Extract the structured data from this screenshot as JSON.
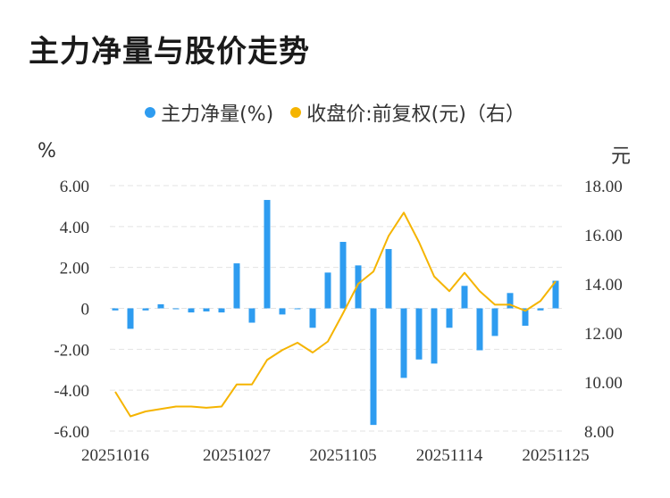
{
  "title": "主力净量与股价走势",
  "legend": {
    "bar_label": "主力净量(%)",
    "line_label": "收盘价:前复权(元)（右）"
  },
  "units": {
    "left": "%",
    "right": "元"
  },
  "colors": {
    "bar": "#2e9cf0",
    "line": "#f5b400",
    "grid": "#e3e3e3"
  },
  "chart_data": {
    "type": "bar+line",
    "x_tick_labels": [
      "20251016",
      "20251027",
      "20251105",
      "20251114",
      "20251125"
    ],
    "left_axis": {
      "ticks": [
        "6.00",
        "4.00",
        "2.00",
        "0",
        "-2.00",
        "-4.00",
        "-6.00"
      ],
      "ylim": [
        -6,
        6
      ]
    },
    "right_axis": {
      "ticks": [
        "18.00",
        "16.00",
        "14.00",
        "12.00",
        "10.00",
        "8.00"
      ],
      "ylim": [
        8,
        18
      ]
    },
    "series": [
      {
        "name": "主力净量(%)",
        "type": "bar",
        "axis": "left",
        "values": [
          -0.1,
          -1.0,
          -0.1,
          0.2,
          0.0,
          -0.2,
          -0.15,
          -0.2,
          2.2,
          -0.7,
          5.3,
          -0.3,
          0.0,
          -0.95,
          1.75,
          3.25,
          2.1,
          -5.7,
          2.9,
          -3.4,
          -2.5,
          -2.7,
          -0.95,
          1.1,
          -2.05,
          -1.35,
          0.75,
          -0.85,
          -0.1,
          1.35
        ]
      },
      {
        "name": "收盘价:前复权(元)（右）",
        "type": "line",
        "axis": "right",
        "values": [
          9.6,
          8.6,
          8.8,
          8.9,
          9.0,
          9.0,
          8.95,
          9.0,
          9.9,
          9.9,
          10.9,
          11.3,
          11.6,
          11.2,
          11.65,
          12.8,
          14.0,
          14.5,
          15.95,
          16.9,
          15.7,
          14.3,
          13.7,
          14.45,
          13.7,
          13.15,
          13.15,
          12.9,
          13.3,
          14.1
        ]
      }
    ]
  }
}
